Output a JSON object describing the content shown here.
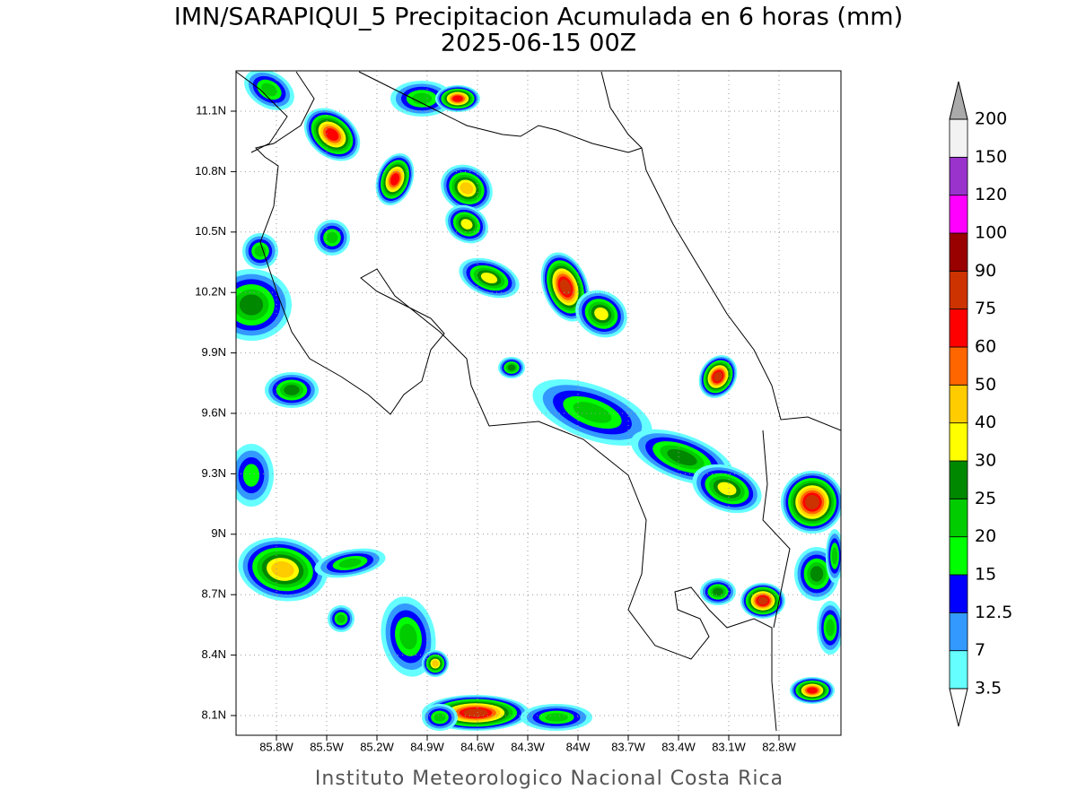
{
  "title": "IMN/SARAPIQUI_5 Precipitacion Acumulada en 6 horas (mm)",
  "subtitle": "2025-06-15 00Z",
  "x_ticks": [
    "85.8W",
    "85.5W",
    "85.2W",
    "84.9W",
    "84.6W",
    "84.3W",
    "84W",
    "83.7W",
    "83.4W",
    "83.1W",
    "82.8W"
  ],
  "y_ticks": [
    "11.1N",
    "10.8N",
    "10.5N",
    "10.2N",
    "9.9N",
    "9.6N",
    "9.3N",
    "9N",
    "8.7N",
    "8.4N",
    "8.1N"
  ],
  "colorbar": {
    "labels": [
      3.5,
      7,
      12.5,
      15,
      20,
      25,
      30,
      40,
      50,
      60,
      75,
      90,
      100,
      120,
      150,
      200
    ],
    "colors": [
      "#66ffff",
      "#3399ff",
      "#0000ff",
      "#00ff00",
      "#00cc00",
      "#008800",
      "#ffff00",
      "#ffcc00",
      "#ff6600",
      "#ff0000",
      "#cc3300",
      "#990000",
      "#ff00ff",
      "#9933cc",
      "#f2f2f2"
    ],
    "under_color": "#ffffff",
    "over_color": "#aaaaaa"
  },
  "footer": "Instituto Meteorologico Nacional Costa Rica"
}
